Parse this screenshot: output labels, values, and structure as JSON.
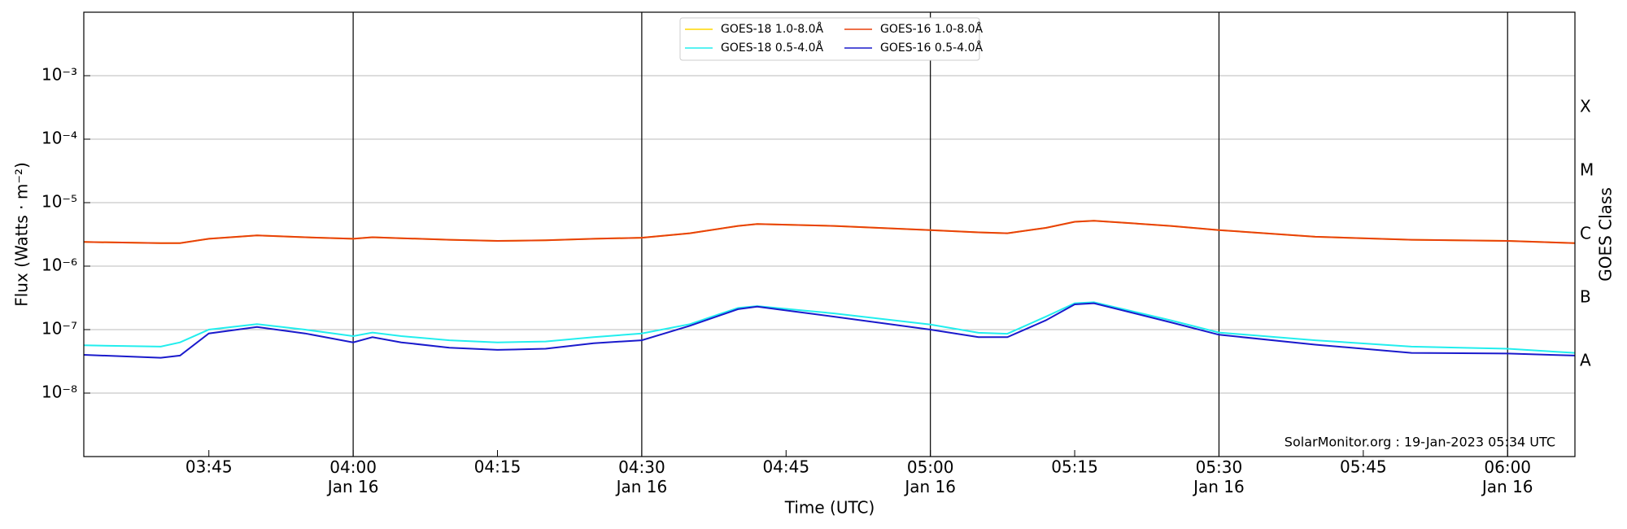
{
  "chart_data": {
    "type": "line",
    "y_label": "Flux (Watts · m⁻²)",
    "y2_label": "GOES Class",
    "x_label": "Time (UTC)",
    "annotation": "SolarMonitor.org : 19-Jan-2023 05:34 UTC",
    "log_scale": true,
    "grid": true,
    "legend": "top",
    "x": [
      "03:32",
      "03:40",
      "03:42",
      "03:45",
      "03:50",
      "03:55",
      "04:00",
      "04:02",
      "04:05",
      "04:10",
      "04:15",
      "04:20",
      "04:25",
      "04:30",
      "04:35",
      "04:40",
      "04:42",
      "04:50",
      "05:00",
      "05:05",
      "05:08",
      "05:12",
      "05:15",
      "05:17",
      "05:25",
      "05:30",
      "05:40",
      "05:50",
      "06:00",
      "06:07"
    ],
    "series": [
      {
        "name": "GOES-18 1.0-8.0Å",
        "color": "#ffd700",
        "values": [
          2.4e-06,
          2.3e-06,
          2.3e-06,
          2.7e-06,
          3.05e-06,
          2.85e-06,
          2.7e-06,
          2.85e-06,
          2.75e-06,
          2.6e-06,
          2.5e-06,
          2.55e-06,
          2.7e-06,
          2.8e-06,
          3.3e-06,
          4.3e-06,
          4.6e-06,
          4.3e-06,
          3.7e-06,
          3.4e-06,
          3.3e-06,
          4e-06,
          5e-06,
          5.2e-06,
          4.3e-06,
          3.7e-06,
          2.9e-06,
          2.6e-06,
          2.5e-06,
          2.3e-06
        ]
      },
      {
        "name": "GOES-18 0.5-4.0Å",
        "color": "#22eeee",
        "values": [
          5.65e-08,
          5.4e-08,
          6.3e-08,
          1e-07,
          1.22e-07,
          1e-07,
          7.9e-08,
          9e-08,
          7.9e-08,
          6.8e-08,
          6.3e-08,
          6.5e-08,
          7.6e-08,
          8.7e-08,
          1.22e-07,
          2.2e-07,
          2.35e-07,
          1.8e-07,
          1.2e-07,
          8.9e-08,
          8.6e-08,
          1.6e-07,
          2.6e-07,
          2.7e-07,
          1.4e-07,
          9e-08,
          6.8e-08,
          5.4e-08,
          5e-08,
          4.3e-08
        ]
      },
      {
        "name": "GOES-16 1.0-8.0Å",
        "color": "#e8400c",
        "values": [
          2.4e-06,
          2.3e-06,
          2.3e-06,
          2.7e-06,
          3.05e-06,
          2.85e-06,
          2.7e-06,
          2.85e-06,
          2.75e-06,
          2.6e-06,
          2.5e-06,
          2.55e-06,
          2.7e-06,
          2.8e-06,
          3.3e-06,
          4.3e-06,
          4.6e-06,
          4.3e-06,
          3.7e-06,
          3.4e-06,
          3.3e-06,
          4e-06,
          5e-06,
          5.2e-06,
          4.3e-06,
          3.7e-06,
          2.9e-06,
          2.6e-06,
          2.5e-06,
          2.3e-06
        ]
      },
      {
        "name": "GOES-16 0.5-4.0Å",
        "color": "#1a1acc",
        "values": [
          4e-08,
          3.6e-08,
          3.9e-08,
          8.7e-08,
          1.1e-07,
          8.7e-08,
          6.3e-08,
          7.6e-08,
          6.3e-08,
          5.2e-08,
          4.8e-08,
          5e-08,
          6.1e-08,
          6.8e-08,
          1.15e-07,
          2.1e-07,
          2.3e-07,
          1.6e-07,
          1e-07,
          7.6e-08,
          7.6e-08,
          1.4e-07,
          2.5e-07,
          2.6e-07,
          1.3e-07,
          8.3e-08,
          5.8e-08,
          4.3e-08,
          4.2e-08,
          3.9e-08
        ]
      }
    ],
    "xlim": [
      "03:32",
      "06:07"
    ],
    "xticks": [
      "03:45",
      {
        "value": "04:00",
        "label": "04:00\nJan 16"
      },
      "04:15",
      {
        "value": "04:30",
        "label": "04:30\nJan 16"
      },
      "04:45",
      {
        "value": "05:00",
        "label": "05:00\nJan 16"
      },
      "05:15",
      {
        "value": "05:30",
        "label": "05:30\nJan 16"
      },
      "05:45",
      {
        "value": "06:00",
        "label": "06:00\nJan 16"
      }
    ],
    "vlines": [
      "04:00",
      "04:30",
      "05:00",
      "05:30",
      "06:00"
    ],
    "ylim": [
      1e-09,
      0.01
    ],
    "yticks": [
      {
        "value": 1e-08,
        "label": "10⁻⁸"
      },
      {
        "value": 1e-07,
        "label": "10⁻⁷"
      },
      {
        "value": 1e-06,
        "label": "10⁻⁶"
      },
      {
        "value": 1e-05,
        "label": "10⁻⁵"
      },
      {
        "value": 0.0001,
        "label": "10⁻⁴"
      },
      {
        "value": 0.001,
        "label": "10⁻³"
      }
    ],
    "y2lim": [
      1e-09,
      0.01
    ],
    "y2ticks": [
      {
        "value": 3.1623e-08,
        "label": "A"
      },
      {
        "value": 3.1623e-07,
        "label": "B"
      },
      {
        "value": 3.1623e-06,
        "label": "C"
      },
      {
        "value": 3.1623e-05,
        "label": "M"
      },
      {
        "value": 0.00031623,
        "label": "X"
      }
    ]
  }
}
